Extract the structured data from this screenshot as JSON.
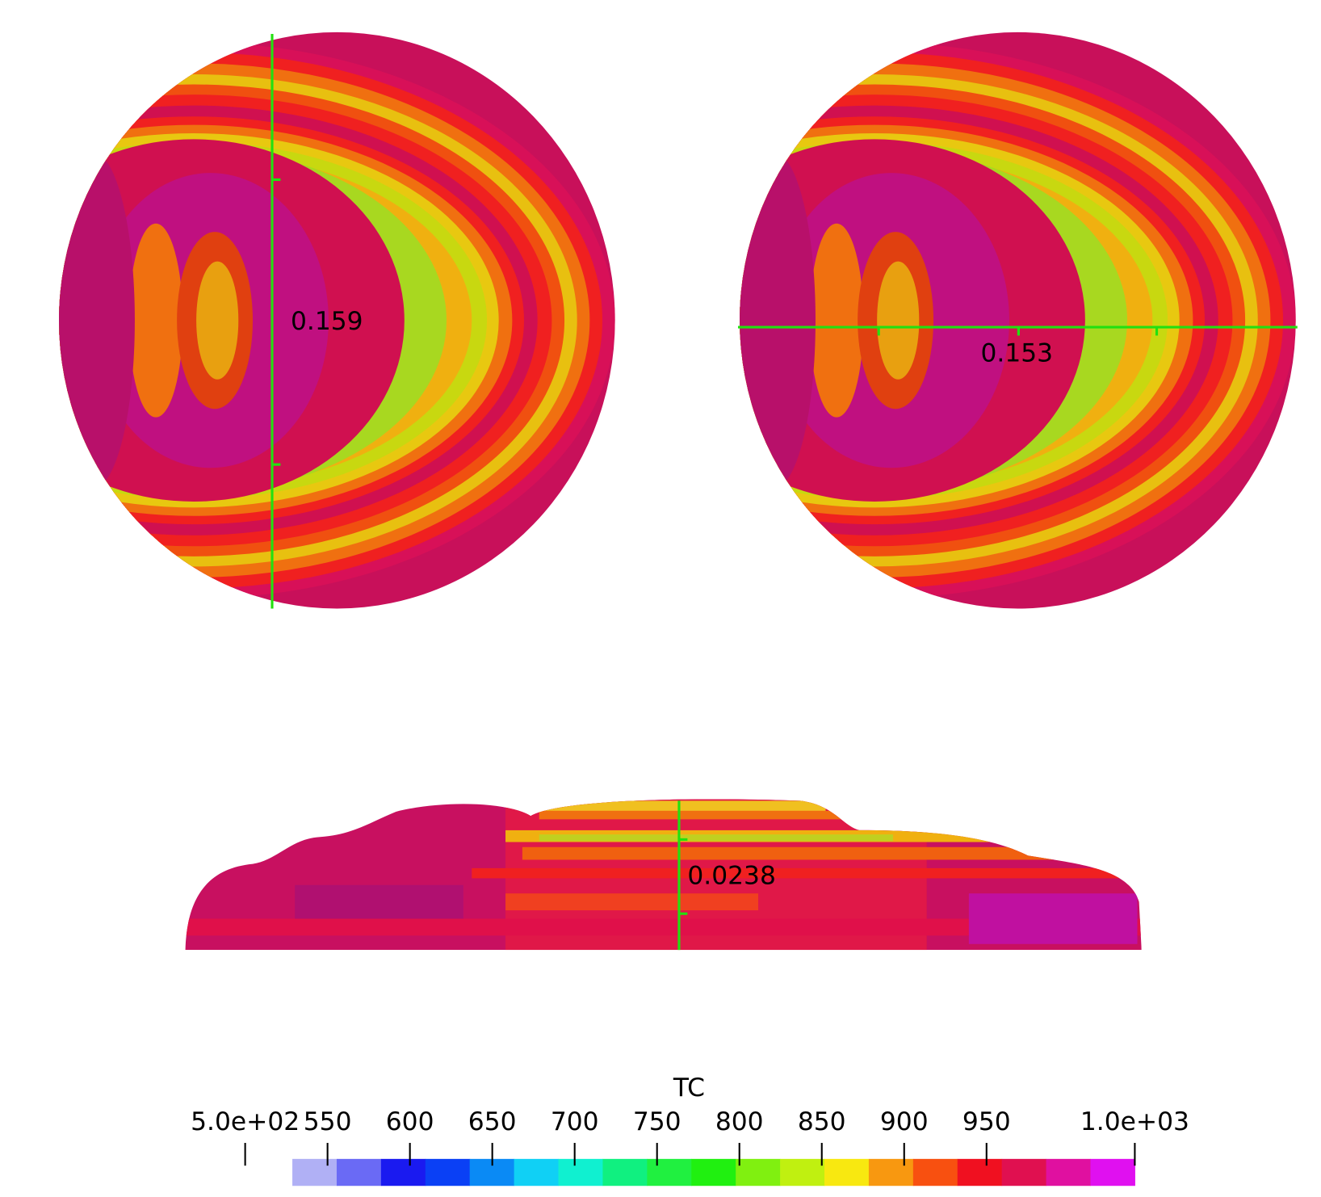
{
  "views": [
    {
      "ruler": 0.159
    },
    {
      "ruler": 0.153
    },
    {
      "ruler": 0.0238
    }
  ],
  "colorbar": {
    "title": "TC",
    "range": [
      500,
      1040
    ],
    "ticks": [
      {
        "value": 500,
        "label": "5.0e+02"
      },
      550,
      600,
      650,
      700,
      750,
      800,
      850,
      900,
      950,
      {
        "value": 1040,
        "label": "1.0e+03"
      }
    ],
    "colors": [
      "#b0b0f5",
      "#6a6af5",
      "#1a1af0",
      "#0a40f5",
      "#0a8af5",
      "#10d0f5",
      "#10f0d0",
      "#10f080",
      "#20f040",
      "#20f010",
      "#80f010",
      "#c0f010",
      "#f8e810",
      "#f89810",
      "#f85010",
      "#f01020",
      "#e01050",
      "#e010a0",
      "#e010f0"
    ]
  }
}
